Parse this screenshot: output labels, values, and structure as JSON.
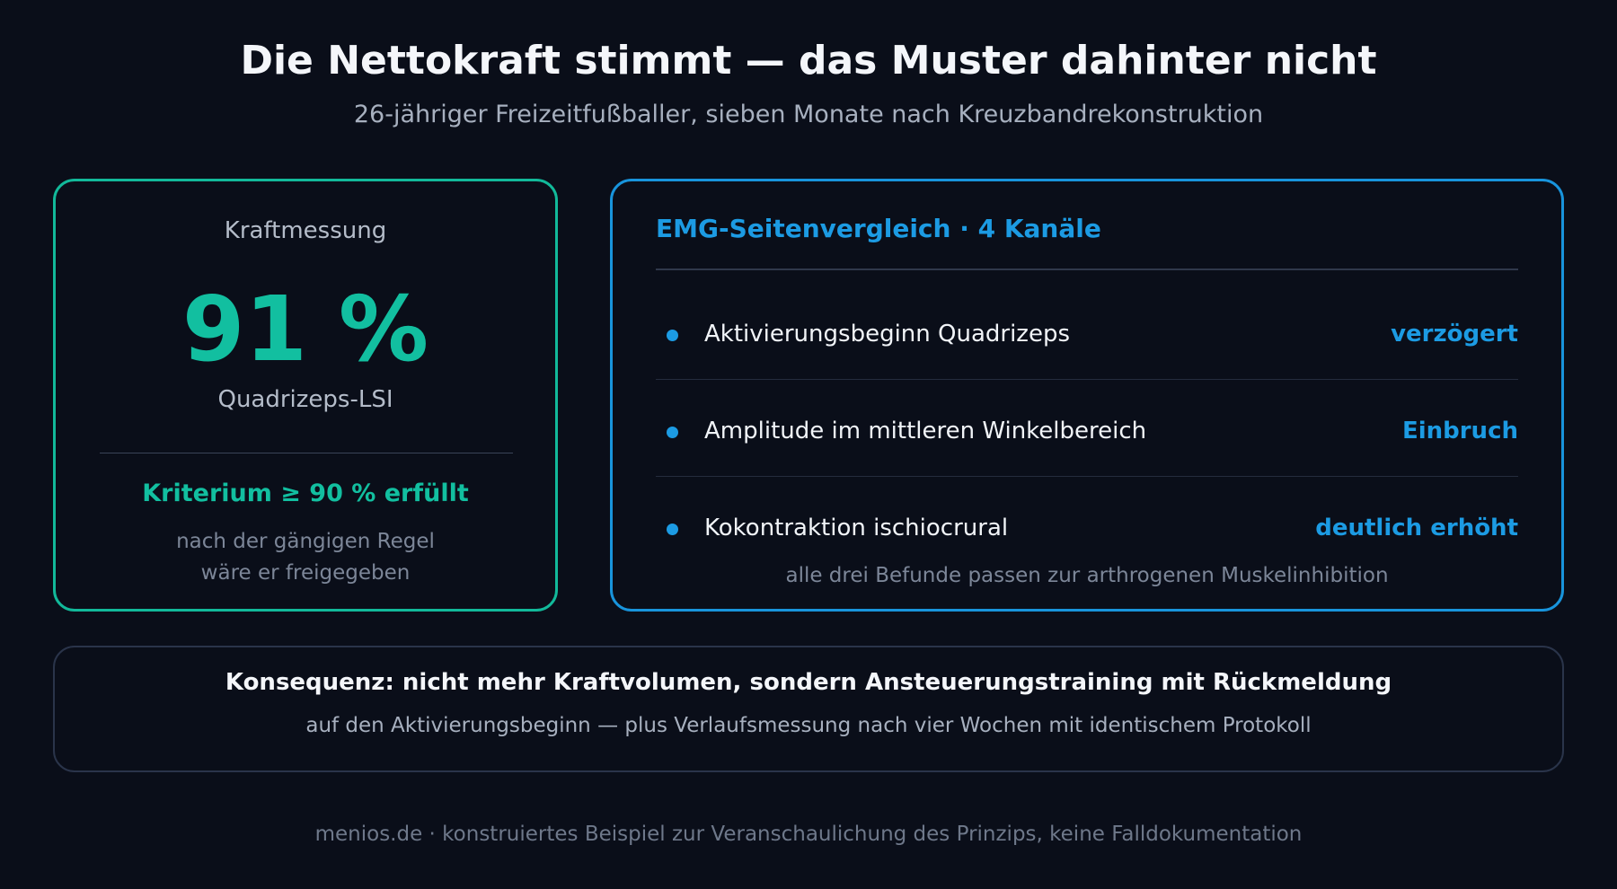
{
  "header": {
    "title": "Die Nettokraft stimmt — das Muster dahinter nicht",
    "subtitle": "26-jähriger Freizeitfußballer, sieben Monate nach Kreuzbandrekonstruktion"
  },
  "kraft": {
    "label": "Kraftmessung",
    "value": "91 %",
    "value_caption": "Quadrizeps-LSI",
    "criterion": "Kriterium ≥ 90 % erfüllt",
    "note_line1": "nach der gängigen Regel",
    "note_line2": "wäre er freigegeben"
  },
  "emg": {
    "title": "EMG-Seitenvergleich · 4 Kanäle",
    "rows": [
      {
        "label": "Aktivierungsbeginn Quadrizeps",
        "value": "verzögert"
      },
      {
        "label": "Amplitude im mittleren Winkelbereich",
        "value": "Einbruch"
      },
      {
        "label": "Kokontraktion ischiocrural",
        "value": "deutlich erhöht"
      }
    ],
    "footnote": "alle drei Befunde passen zur arthrogenen Muskelinhibition"
  },
  "consequence": {
    "main": "Konsequenz: nicht mehr Kraftvolumen, sondern Ansteuerungstraining mit Rückmeldung",
    "sub": "auf den Aktivierungsbeginn — plus Verlaufsmessung nach vier Wochen mit identischem Protokoll"
  },
  "footer": {
    "text": "menios.de · konstruiertes Beispiel zur Veranschaulichung des Prinzips, keine Falldokumentation"
  },
  "colors": {
    "background": "#0a0e19",
    "green_accent": "#12bfa0",
    "blue_accent": "#1c9be3",
    "neutral_border": "#2a344a"
  }
}
